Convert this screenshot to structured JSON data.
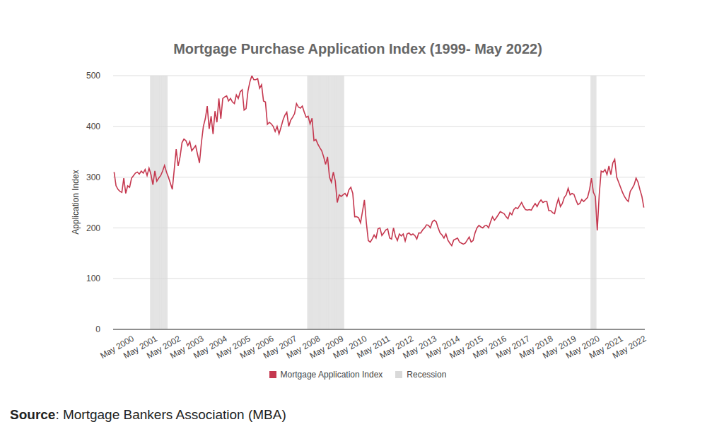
{
  "chart_data": {
    "type": "line",
    "title": "Mortgage Purchase Application Index (1999- May 2022)",
    "y_label": "Application Index",
    "source": "Source: Mortgage Bankers Association (MBA)",
    "grid": true,
    "ylim": [
      0,
      500
    ],
    "yticks": [
      0,
      100,
      200,
      300,
      400,
      500
    ],
    "categories": [
      null,
      null,
      null,
      null,
      null,
      null,
      null,
      null,
      null,
      "May 2000",
      null,
      null,
      null,
      null,
      null,
      null,
      null,
      null,
      null,
      null,
      null,
      "May 2001",
      null,
      null,
      null,
      null,
      null,
      null,
      null,
      null,
      null,
      null,
      null,
      "May 2002",
      null,
      null,
      null,
      null,
      null,
      null,
      null,
      null,
      null,
      null,
      null,
      "May 2003",
      null,
      null,
      null,
      null,
      null,
      null,
      null,
      null,
      null,
      null,
      null,
      "May 2004",
      null,
      null,
      null,
      null,
      null,
      null,
      null,
      null,
      null,
      null,
      null,
      "May 2005",
      null,
      null,
      null,
      null,
      null,
      null,
      null,
      null,
      null,
      null,
      null,
      "May 2006",
      null,
      null,
      null,
      null,
      null,
      null,
      null,
      null,
      null,
      null,
      null,
      "May 2007",
      null,
      null,
      null,
      null,
      null,
      null,
      null,
      null,
      null,
      null,
      null,
      "May 2008",
      null,
      null,
      null,
      null,
      null,
      null,
      null,
      null,
      null,
      null,
      null,
      "May 2009",
      null,
      null,
      null,
      null,
      null,
      null,
      null,
      null,
      null,
      null,
      null,
      "May 2010",
      null,
      null,
      null,
      null,
      null,
      null,
      null,
      null,
      null,
      null,
      null,
      "May 2011",
      null,
      null,
      null,
      null,
      null,
      null,
      null,
      null,
      null,
      null,
      null,
      "May 2012",
      null,
      null,
      null,
      null,
      null,
      null,
      null,
      null,
      null,
      null,
      null,
      "May 2013",
      null,
      null,
      null,
      null,
      null,
      null,
      null,
      null,
      null,
      null,
      null,
      "May 2014",
      null,
      null,
      null,
      null,
      null,
      null,
      null,
      null,
      null,
      null,
      null,
      "May 2015",
      null,
      null,
      null,
      null,
      null,
      null,
      null,
      null,
      null,
      null,
      null,
      "May 2016",
      null,
      null,
      null,
      null,
      null,
      null,
      null,
      null,
      null,
      null,
      null,
      "May 2017",
      null,
      null,
      null,
      null,
      null,
      null,
      null,
      null,
      null,
      null,
      null,
      "May 2018",
      null,
      null,
      null,
      null,
      null,
      null,
      null,
      null,
      null,
      null,
      null,
      "May 2019",
      null,
      null,
      null,
      null,
      null,
      null,
      null,
      null,
      null,
      null,
      null,
      "May 2020",
      null,
      null,
      null,
      null,
      null,
      null,
      null,
      null,
      null,
      null,
      null,
      "May 2021",
      null,
      null,
      null,
      null,
      null,
      null,
      null,
      null,
      null,
      null,
      null,
      "May 2022"
    ],
    "series": [
      {
        "name": "Mortgage Application Index",
        "color": "#c5384f",
        "type": "line",
        "values": [
          310,
          283,
          276,
          272,
          270,
          298,
          268,
          283,
          280,
          298,
          303,
          308,
          310,
          306,
          312,
          308,
          315,
          303,
          318,
          305,
          285,
          312,
          292,
          298,
          303,
          312,
          323,
          310,
          300,
          288,
          276,
          315,
          355,
          322,
          340,
          368,
          375,
          372,
          362,
          370,
          352,
          357,
          362,
          345,
          328,
          368,
          400,
          415,
          440,
          395,
          420,
          385,
          430,
          408,
          455,
          415,
          455,
          458,
          460,
          450,
          455,
          448,
          445,
          462,
          455,
          468,
          472,
          432,
          435,
          470,
          488,
          500,
          492,
          492,
          494,
          475,
          482,
          450,
          448,
          404,
          408,
          405,
          400,
          390,
          400,
          385,
          398,
          412,
          422,
          428,
          400,
          412,
          418,
          425,
          445,
          438,
          436,
          440,
          428,
          418,
          420,
          405,
          416,
          372,
          374,
          365,
          358,
          352,
          340,
          325,
          340,
          300,
          290,
          310,
          292,
          250,
          265,
          262,
          265,
          268,
          262,
          275,
          280,
          268,
          222,
          222,
          220,
          210,
          232,
          255,
          210,
          175,
          172,
          178,
          186,
          180,
          198,
          200,
          185,
          190,
          196,
          198,
          180,
          178,
          200,
          183,
          175,
          188,
          184,
          188,
          174,
          188,
          190,
          186,
          188,
          185,
          178,
          190,
          190,
          196,
          200,
          206,
          205,
          200,
          212,
          215,
          212,
          200,
          190,
          186,
          180,
          188,
          176,
          170,
          165,
          176,
          178,
          180,
          172,
          170,
          168,
          170,
          176,
          182,
          172,
          175,
          190,
          200,
          205,
          202,
          200,
          204,
          205,
          200,
          212,
          222,
          215,
          220,
          226,
          232,
          230,
          228,
          222,
          218,
          230,
          226,
          236,
          240,
          238,
          244,
          250,
          242,
          236,
          235,
          236,
          235,
          242,
          248,
          242,
          250,
          255,
          250,
          252,
          252,
          234,
          234,
          230,
          228,
          245,
          258,
          242,
          248,
          260,
          265,
          278,
          265,
          268,
          266,
          255,
          246,
          248,
          256,
          252,
          256,
          260,
          275,
          298,
          270,
          262,
          195,
          265,
          312,
          310,
          315,
          305,
          322,
          305,
          328,
          335,
          300,
          290,
          280,
          270,
          262,
          256,
          252,
          272,
          278,
          285,
          298,
          290,
          275,
          262,
          240
        ]
      },
      {
        "name": "Recession",
        "color": "#d9d9d9",
        "type": "bar",
        "values": [
          null,
          null,
          null,
          null,
          null,
          null,
          null,
          null,
          null,
          null,
          null,
          null,
          null,
          null,
          null,
          null,
          null,
          null,
          null,
          500,
          500,
          500,
          500,
          500,
          500,
          500,
          500,
          500,
          null,
          null,
          null,
          null,
          null,
          null,
          null,
          null,
          null,
          null,
          null,
          null,
          null,
          null,
          null,
          null,
          null,
          null,
          null,
          null,
          null,
          null,
          null,
          null,
          null,
          null,
          null,
          null,
          null,
          null,
          null,
          null,
          null,
          null,
          null,
          null,
          null,
          null,
          null,
          null,
          null,
          null,
          null,
          null,
          null,
          null,
          null,
          null,
          null,
          null,
          null,
          null,
          null,
          null,
          null,
          null,
          null,
          null,
          null,
          null,
          null,
          null,
          null,
          null,
          null,
          null,
          null,
          null,
          null,
          null,
          null,
          null,
          500,
          500,
          500,
          500,
          500,
          500,
          500,
          500,
          500,
          500,
          500,
          500,
          500,
          500,
          500,
          500,
          500,
          500,
          500,
          null,
          null,
          null,
          null,
          null,
          null,
          null,
          null,
          null,
          null,
          null,
          null,
          null,
          null,
          null,
          null,
          null,
          null,
          null,
          null,
          null,
          null,
          null,
          null,
          null,
          null,
          null,
          null,
          null,
          null,
          null,
          null,
          null,
          null,
          null,
          null,
          null,
          null,
          null,
          null,
          null,
          null,
          null,
          null,
          null,
          null,
          null,
          null,
          null,
          null,
          null,
          null,
          null,
          null,
          null,
          null,
          null,
          null,
          null,
          null,
          null,
          null,
          null,
          null,
          null,
          null,
          null,
          null,
          null,
          null,
          null,
          null,
          null,
          null,
          null,
          null,
          null,
          null,
          null,
          null,
          null,
          null,
          null,
          null,
          null,
          null,
          null,
          null,
          null,
          null,
          null,
          null,
          null,
          null,
          null,
          null,
          null,
          null,
          null,
          null,
          null,
          null,
          null,
          null,
          null,
          null,
          null,
          null,
          null,
          null,
          null,
          null,
          null,
          null,
          null,
          null,
          null,
          null,
          null,
          null,
          null,
          null,
          null,
          null,
          null,
          null,
          null,
          500,
          500,
          500,
          null,
          null,
          null,
          null,
          null,
          null,
          null,
          null,
          null,
          null,
          null,
          null,
          null,
          null,
          null,
          null,
          null,
          null,
          null,
          null,
          null,
          null,
          null,
          null,
          null
        ]
      }
    ]
  }
}
